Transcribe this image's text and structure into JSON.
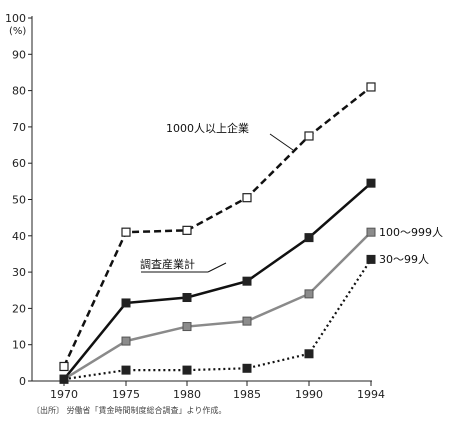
{
  "chart_data": {
    "type": "line",
    "x": [
      1970,
      1975,
      1980,
      1985,
      1990,
      1994
    ],
    "xticks": [
      "1970",
      "1975",
      "1980",
      "1985",
      "1990",
      "1994"
    ],
    "ylim": [
      0,
      100
    ],
    "yticks": [
      0,
      10,
      20,
      30,
      40,
      50,
      60,
      70,
      80,
      90,
      100
    ],
    "ylabel": "(%)",
    "series": [
      {
        "name": "1000人以上企業",
        "values": [
          4,
          41,
          41.5,
          50.5,
          67.5,
          81
        ],
        "line": "dashed",
        "marker": "open-square",
        "color": "#111111",
        "labelpos": "callout"
      },
      {
        "name": "調査産業計",
        "values": [
          0.5,
          21.5,
          23,
          27.5,
          39.5,
          54.5
        ],
        "line": "solid",
        "marker": "filled-square",
        "color": "#111111",
        "labelpos": "callout"
      },
      {
        "name": "100〜999人",
        "values": [
          0.5,
          11,
          15,
          16.5,
          24,
          41
        ],
        "line": "solid",
        "marker": "gray-square",
        "color": "#8a8a8a",
        "labelpos": "right"
      },
      {
        "name": "30〜99人",
        "values": [
          0.5,
          3,
          3,
          3.5,
          7.5,
          33.5
        ],
        "line": "dotted",
        "marker": "filled-square",
        "color": "#111111",
        "labelpos": "right"
      }
    ],
    "grid": false,
    "source_note": "〔出所〕 労働省「賃金時間制度総合調査」より作成。"
  }
}
